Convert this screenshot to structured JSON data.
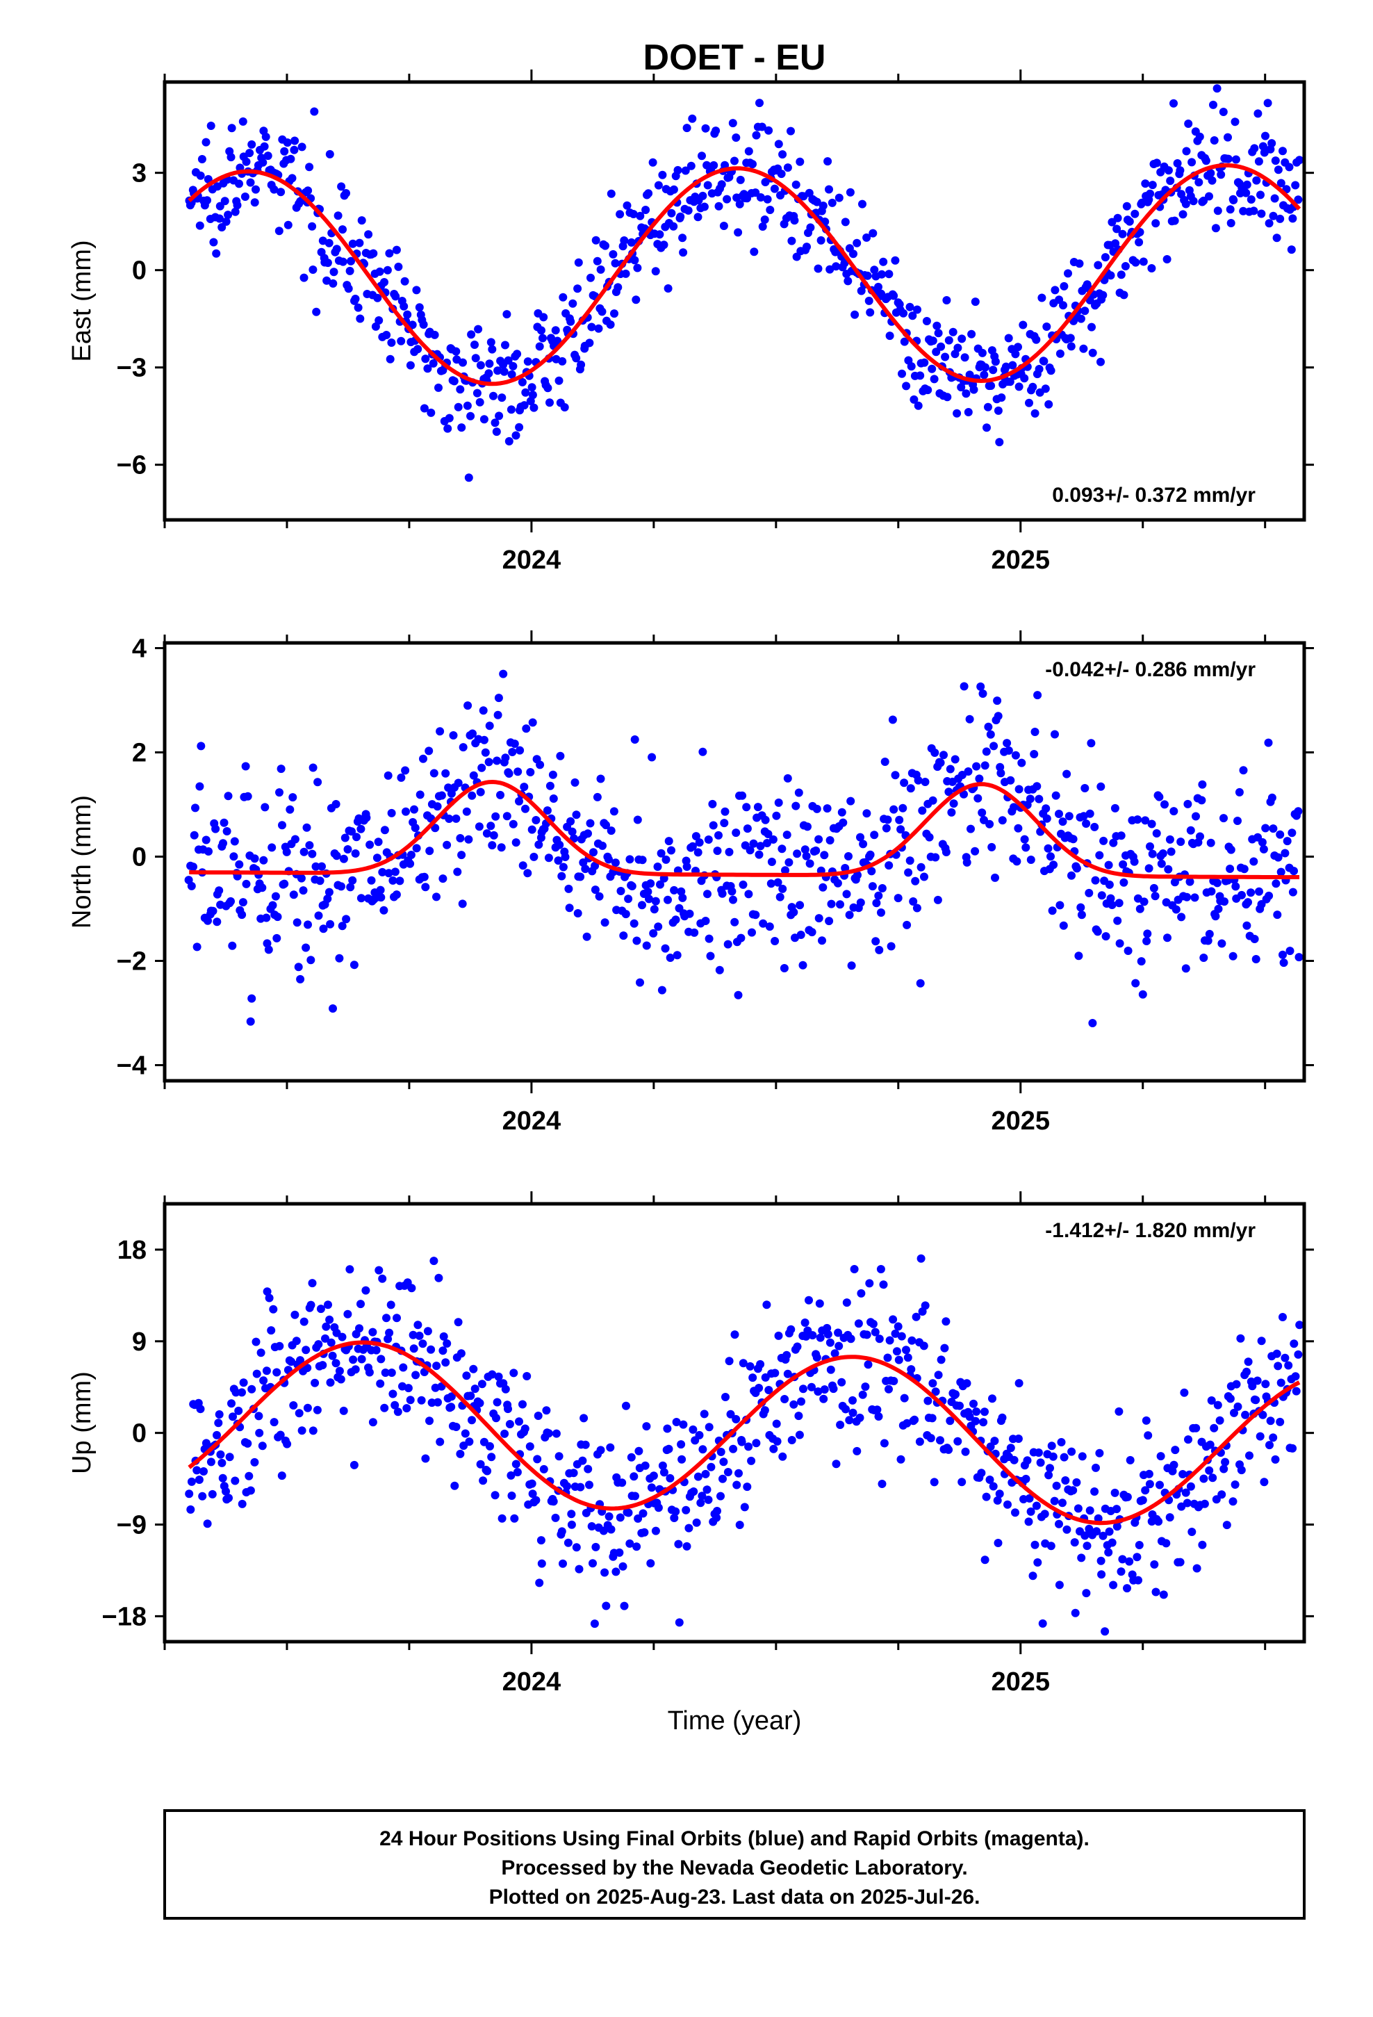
{
  "title": "DOET - EU",
  "colors": {
    "points": "#0000ff",
    "fit": "#ff0000",
    "frame": "#000000"
  },
  "x_label": "Time (year)",
  "footer": {
    "line1": "24 Hour Positions Using Final Orbits (blue) and Rapid Orbits (magenta).",
    "line2": "Processed by the Nevada Geodetic Laboratory.",
    "line3": "Plotted on 2025-Aug-23. Last data on 2025-Jul-26."
  },
  "chart_data": [
    {
      "type": "scatter",
      "id": "east",
      "ylabel": "East (mm)",
      "rate": "0.093+/- 0.372 mm/yr",
      "xlim": [
        2023.25,
        2025.58
      ],
      "ylim": [
        -7.7,
        5.8
      ],
      "yticks": [
        -6,
        -3,
        0,
        3
      ],
      "xticks_labeled": [
        2024,
        2025
      ],
      "x_minor_step": 0.25,
      "fit": {
        "offset": -0.2,
        "amplitude": 3.3,
        "peak_phase": 0.42,
        "trend": 0.093,
        "x0": 2024.0
      },
      "series": {
        "name": "",
        "x_start": 2023.3,
        "x_end": 2025.57,
        "count": 850,
        "scatter": 0.9,
        "y_range": [
          -7.5,
          5.6
        ]
      }
    },
    {
      "type": "scatter",
      "id": "north",
      "ylabel": "North (mm)",
      "rate": "-0.042+/- 0.286 mm/yr",
      "xlim": [
        2023.25,
        2025.58
      ],
      "ylim": [
        -4.3,
        4.1
      ],
      "yticks": [
        -4,
        -2,
        0,
        2,
        4
      ],
      "xticks_labeled": [
        2024,
        2025
      ],
      "x_minor_step": 0.25,
      "fit": {
        "offset": 0.0,
        "amplitude": 0.55,
        "peak_phase": 0.92,
        "trend": -0.042,
        "x0": 2024.0,
        "shape_power": 4
      },
      "series": {
        "name": "",
        "x_start": 2023.3,
        "x_end": 2025.57,
        "count": 850,
        "scatter": 0.95,
        "y_range": [
          -4.1,
          4.0
        ]
      }
    },
    {
      "type": "scatter",
      "id": "up",
      "ylabel": "Up (mm)",
      "rate": "-1.412+/- 1.820 mm/yr",
      "xlim": [
        2023.25,
        2025.58
      ],
      "ylim": [
        -20.5,
        22.5
      ],
      "yticks": [
        -18,
        -9,
        0,
        9,
        18
      ],
      "xticks_labeled": [
        2024,
        2025
      ],
      "x_minor_step": 0.25,
      "fit": {
        "offset": 0.6,
        "amplitude": 7.8,
        "peak_phase": 0.66,
        "trend": -1.412,
        "x0": 2024.0
      },
      "series": {
        "name": "",
        "x_start": 2023.3,
        "x_end": 2025.57,
        "count": 850,
        "scatter": 4.2,
        "y_range": [
          -19.5,
          21.5
        ]
      }
    }
  ]
}
